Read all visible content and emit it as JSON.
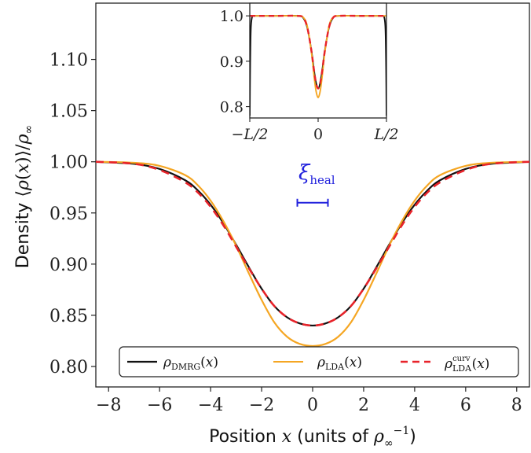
{
  "chart_data": {
    "type": "line",
    "main": {
      "xlabel": "Position x (units of ρ∞⁻¹)",
      "ylabel": "Density ⟨ρ(x)⟩/ρ∞",
      "xlim": [
        -8.5,
        8.5
      ],
      "ylim": [
        0.78,
        1.155
      ],
      "xticks": [
        "−8",
        "−6",
        "−4",
        "−2",
        "0",
        "2",
        "4",
        "6",
        "8"
      ],
      "xtick_values": [
        -8,
        -6,
        -4,
        -2,
        0,
        2,
        4,
        6,
        8
      ],
      "yticks": [
        "0.80",
        "0.85",
        "0.90",
        "0.95",
        "1.00",
        "1.05",
        "1.10"
      ],
      "ytick_values": [
        0.8,
        0.85,
        0.9,
        0.95,
        1.0,
        1.05,
        1.1
      ],
      "grid": false,
      "legend_position": "bottom",
      "series": [
        {
          "name": "ρDMRG(x)",
          "color": "#111111",
          "style": "solid",
          "x": [
            -8.5,
            -7,
            -6,
            -5,
            -4.5,
            -4,
            -3.5,
            -3,
            -2.5,
            -2,
            -1.5,
            -1,
            -0.5,
            0,
            0.5,
            1,
            1.5,
            2,
            2.5,
            3,
            3.5,
            4,
            4.5,
            5,
            6,
            7,
            8.5
          ],
          "y": [
            1.0,
            0.998,
            0.993,
            0.982,
            0.972,
            0.958,
            0.94,
            0.919,
            0.897,
            0.876,
            0.859,
            0.848,
            0.842,
            0.84,
            0.842,
            0.848,
            0.859,
            0.876,
            0.897,
            0.919,
            0.94,
            0.958,
            0.972,
            0.982,
            0.993,
            0.998,
            1.0
          ]
        },
        {
          "name": "ρLDA(x)",
          "color": "#f5a623",
          "style": "solid",
          "x": [
            -8.5,
            -7,
            -6,
            -5,
            -4.5,
            -4,
            -3.5,
            -3,
            -2.5,
            -2,
            -1.5,
            -1,
            -0.5,
            0,
            0.5,
            1,
            1.5,
            2,
            2.5,
            3,
            3.5,
            4,
            4.5,
            5,
            6,
            7,
            8.5
          ],
          "y": [
            1.0,
            0.999,
            0.996,
            0.987,
            0.977,
            0.962,
            0.942,
            0.918,
            0.891,
            0.865,
            0.843,
            0.829,
            0.822,
            0.82,
            0.822,
            0.829,
            0.843,
            0.865,
            0.891,
            0.918,
            0.942,
            0.962,
            0.977,
            0.987,
            0.996,
            0.999,
            1.0
          ]
        },
        {
          "name": "ρcurvLDA(x)",
          "color": "#e8232a",
          "style": "dashed",
          "x": [
            -8.5,
            -7,
            -6,
            -5,
            -4.5,
            -4,
            -3.5,
            -3,
            -2.5,
            -2,
            -1.5,
            -1,
            -0.5,
            0,
            0.5,
            1,
            1.5,
            2,
            2.5,
            3,
            3.5,
            4,
            4.5,
            5,
            6,
            7,
            8.5
          ],
          "y": [
            1.0,
            0.998,
            0.992,
            0.98,
            0.97,
            0.956,
            0.938,
            0.917,
            0.896,
            0.876,
            0.859,
            0.848,
            0.842,
            0.84,
            0.842,
            0.848,
            0.859,
            0.876,
            0.896,
            0.917,
            0.938,
            0.956,
            0.97,
            0.98,
            0.992,
            0.998,
            1.0
          ]
        }
      ],
      "annotation": {
        "text": "ξ",
        "sub": "heal",
        "bar_x": [
          -0.6,
          0.6
        ],
        "bar_y": 0.96,
        "color": "#2222dd"
      }
    },
    "inset": {
      "xlim": [
        -1,
        1
      ],
      "ylim": [
        0.775,
        1.028
      ],
      "xticks": [
        "−L/2",
        "0",
        "L/2"
      ],
      "xtick_values": [
        -1,
        0,
        1
      ],
      "yticks": [
        "0.8",
        "0.9",
        "1.0"
      ],
      "ytick_values": [
        0.8,
        0.9,
        1.0
      ],
      "series": [
        {
          "name": "ρDMRG(x)",
          "color": "#111111",
          "style": "solid",
          "x": [
            -1,
            -0.995,
            -0.985,
            -0.97,
            -0.95,
            -0.9,
            -0.6,
            -0.3,
            -0.22,
            -0.16,
            -0.1,
            -0.06,
            -0.03,
            0,
            0.03,
            0.06,
            0.1,
            0.16,
            0.22,
            0.3,
            0.6,
            0.9,
            0.95,
            0.97,
            0.985,
            0.995,
            1
          ],
          "y": [
            0.78,
            0.88,
            0.97,
            0.995,
            1.0,
            1.0,
            1.0,
            1.0,
            0.996,
            0.975,
            0.925,
            0.88,
            0.852,
            0.84,
            0.852,
            0.88,
            0.925,
            0.975,
            0.996,
            1.0,
            1.0,
            1.0,
            1.0,
            0.995,
            0.97,
            0.88,
            0.78
          ]
        },
        {
          "name": "ρLDA(x)",
          "color": "#f5a623",
          "style": "solid",
          "x": [
            -1,
            -0.95,
            -0.9,
            -0.6,
            -0.3,
            -0.22,
            -0.16,
            -0.1,
            -0.06,
            -0.03,
            0,
            0.03,
            0.06,
            0.1,
            0.16,
            0.22,
            0.3,
            0.6,
            0.9,
            0.95,
            1
          ],
          "y": [
            1.0,
            1.0,
            1.0,
            1.0,
            1.0,
            0.997,
            0.978,
            0.922,
            0.868,
            0.834,
            0.82,
            0.834,
            0.868,
            0.922,
            0.978,
            0.997,
            1.0,
            1.0,
            1.0,
            1.0,
            1.0
          ]
        },
        {
          "name": "ρcurvLDA(x)",
          "color": "#e8232a",
          "style": "dashed",
          "x": [
            -1,
            -0.95,
            -0.9,
            -0.6,
            -0.3,
            -0.22,
            -0.16,
            -0.1,
            -0.06,
            -0.03,
            0,
            0.03,
            0.06,
            0.1,
            0.16,
            0.22,
            0.3,
            0.6,
            0.9,
            0.95,
            1
          ],
          "y": [
            1.0,
            1.0,
            1.0,
            1.0,
            1.0,
            0.996,
            0.975,
            0.925,
            0.88,
            0.852,
            0.84,
            0.852,
            0.88,
            0.925,
            0.975,
            0.996,
            1.0,
            1.0,
            1.0,
            1.0,
            1.0
          ]
        }
      ]
    }
  }
}
